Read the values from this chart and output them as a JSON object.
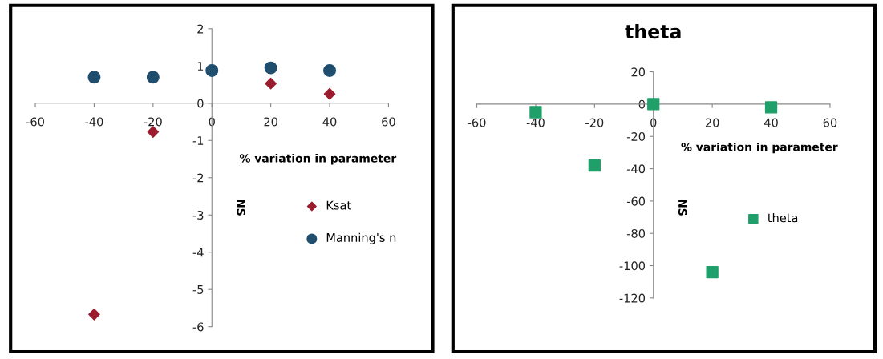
{
  "chart_data": [
    {
      "type": "scatter",
      "xlabel": "% variation in parameter",
      "ylabel": "NS",
      "xlim": [
        -60,
        60
      ],
      "xticks": [
        -60,
        -40,
        -20,
        0,
        20,
        40,
        60
      ],
      "ylim": [
        -6,
        2
      ],
      "yticks": [
        -6,
        -5,
        -4,
        -3,
        -2,
        -1,
        0,
        1,
        2
      ],
      "grid": false,
      "legend": "right",
      "series": [
        {
          "name": "Ksat",
          "color": "#9b1c2e",
          "marker": "diamond",
          "x": [
            -40,
            -20,
            20,
            40
          ],
          "values": [
            -5.67,
            -0.77,
            0.53,
            0.25
          ]
        },
        {
          "name": "Manning's n",
          "color": "#1f4e6e",
          "marker": "circle",
          "x": [
            -40,
            -20,
            0,
            20,
            40
          ],
          "values": [
            0.7,
            0.7,
            0.88,
            0.95,
            0.88
          ]
        }
      ]
    },
    {
      "type": "scatter",
      "title": "theta",
      "xlabel": "% variation in parameter",
      "ylabel": "NS",
      "xlim": [
        -60,
        60
      ],
      "xticks": [
        -60,
        -40,
        -20,
        0,
        20,
        40,
        60
      ],
      "ylim": [
        -120,
        20
      ],
      "yticks": [
        -120,
        -100,
        -80,
        -60,
        -40,
        -20,
        0,
        20
      ],
      "grid": false,
      "legend": "right",
      "series": [
        {
          "name": "theta",
          "color": "#1fa06a",
          "marker": "square",
          "x": [
            -40,
            -20,
            0,
            20,
            40
          ],
          "values": [
            -5,
            -38,
            0,
            -104,
            -2
          ]
        }
      ]
    }
  ]
}
